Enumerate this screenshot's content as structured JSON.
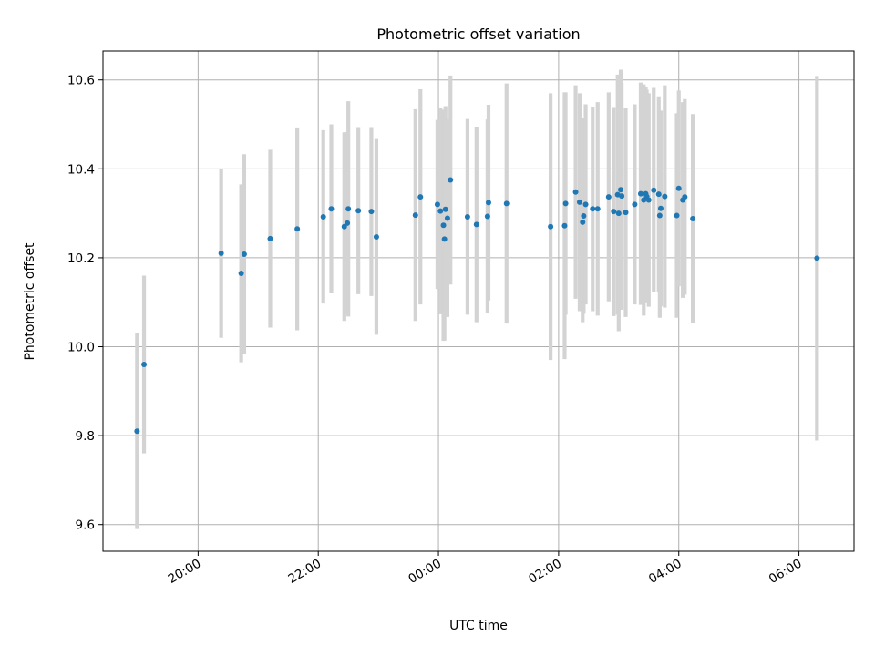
{
  "chart_data": {
    "type": "scatter",
    "title": "Photometric offset variation",
    "xlabel": "UTC time",
    "ylabel": "Photometric offset",
    "xlim": [
      "18:25",
      "06:55"
    ],
    "ylim": [
      9.54,
      10.665
    ],
    "grid": true,
    "xticks": [
      "20:00",
      "22:00",
      "00:00",
      "02:00",
      "04:00",
      "06:00"
    ],
    "yticks": [
      9.6,
      9.8,
      10.0,
      10.2,
      10.4,
      10.6
    ],
    "ytick_labels": [
      "9.6",
      "9.8",
      "10.0",
      "10.2",
      "10.4",
      "10.6"
    ],
    "colors": {
      "marker": "#1f77b4",
      "errorbar": "#d3d3d3",
      "grid": "#b0b0b0"
    },
    "series": [
      {
        "x": [
          "18:59",
          "19:06",
          "20:23",
          "20:43",
          "20:46",
          "21:12",
          "21:39",
          "22:05",
          "22:13",
          "22:26",
          "22:29",
          "22:30",
          "22:40",
          "22:53",
          "22:58",
          "23:37",
          "23:42",
          "23:59",
          "24:02",
          "24:05",
          "24:06",
          "24:07",
          "24:09",
          "24:12",
          "24:29",
          "24:38",
          "24:49",
          "24:50",
          "25:08",
          "25:52",
          "26:06",
          "26:07",
          "26:17",
          "26:21",
          "26:24",
          "26:25",
          "26:27",
          "26:34",
          "26:39",
          "26:50",
          "26:55",
          "26:59",
          "27:00",
          "27:02",
          "27:03",
          "27:07",
          "27:16",
          "27:22",
          "27:25",
          "27:27",
          "27:28",
          "27:30",
          "27:35",
          "27:40",
          "27:41",
          "27:42",
          "27:46",
          "27:58",
          "28:00",
          "28:04",
          "28:06",
          "28:14",
          "30:18"
        ],
        "y": [
          9.81,
          9.96,
          10.21,
          10.165,
          10.208,
          10.243,
          10.265,
          10.292,
          10.31,
          10.27,
          10.278,
          10.31,
          10.306,
          10.304,
          10.247,
          10.296,
          10.337,
          10.32,
          10.305,
          10.273,
          10.242,
          10.309,
          10.289,
          10.375,
          10.292,
          10.275,
          10.293,
          10.324,
          10.322,
          10.27,
          10.272,
          10.322,
          10.348,
          10.325,
          10.28,
          10.294,
          10.32,
          10.31,
          10.31,
          10.337,
          10.304,
          10.342,
          10.3,
          10.353,
          10.339,
          10.302,
          10.32,
          10.344,
          10.33,
          10.344,
          10.338,
          10.33,
          10.352,
          10.343,
          10.295,
          10.311,
          10.338,
          10.295,
          10.356,
          10.33,
          10.337,
          10.288,
          10.199
        ],
        "yerr": [
          0.22,
          0.2,
          0.19,
          0.2,
          0.225,
          0.2,
          0.228,
          0.195,
          0.19,
          0.212,
          0.205,
          0.242,
          0.188,
          0.19,
          0.22,
          0.238,
          0.242,
          0.19,
          0.232,
          0.26,
          0.228,
          0.232,
          0.222,
          0.235,
          0.22,
          0.22,
          0.218,
          0.22,
          0.27,
          0.3,
          0.3,
          0.25,
          0.24,
          0.245,
          0.225,
          0.22,
          0.225,
          0.23,
          0.24,
          0.235,
          0.235,
          0.27,
          0.265,
          0.27,
          0.255,
          0.235,
          0.225,
          0.25,
          0.26,
          0.24,
          0.24,
          0.24,
          0.23,
          0.22,
          0.23,
          0.22,
          0.25,
          0.23,
          0.22,
          0.22,
          0.22,
          0.235,
          0.41
        ]
      }
    ]
  }
}
